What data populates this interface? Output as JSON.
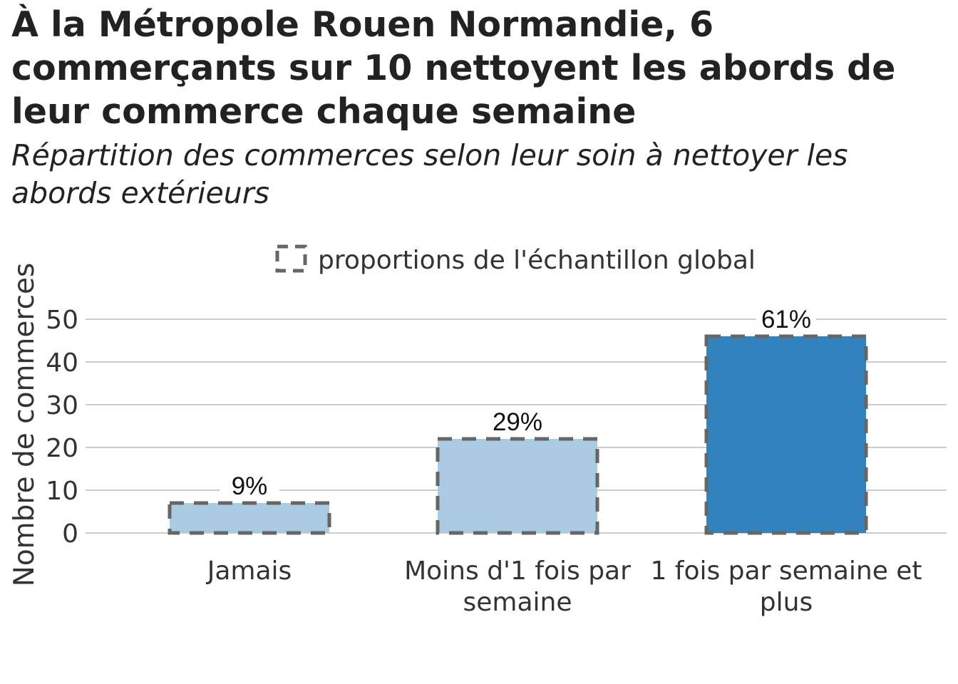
{
  "title": "À la Métropole Rouen Normandie, 6 commerçants sur 10 nettoyent les abords de leur commerce chaque semaine",
  "subtitle": "Répartition des commerces selon leur soin à nettoyer les abords extérieurs",
  "chart_data": {
    "type": "bar",
    "categories": [
      "Jamais",
      "Moins d'1 fois par semaine",
      "1 fois par semaine et plus"
    ],
    "category_lines": [
      [
        "Jamais"
      ],
      [
        "Moins d'1 fois par",
        "semaine"
      ],
      [
        "1 fois par semaine et",
        "plus"
      ]
    ],
    "values": [
      7,
      22,
      46
    ],
    "data_labels": [
      "9%",
      "29%",
      "61%"
    ],
    "reference_values": [
      7,
      22,
      46
    ],
    "bar_colors": [
      "#abcbe3",
      "#abcbe3",
      "#3182bd"
    ],
    "outline_color": "#666666",
    "grid_color": "#cccccc",
    "ylabel": "Nombre de commerces",
    "yticks": [
      0,
      10,
      20,
      30,
      40,
      50
    ],
    "ylim": [
      0,
      50
    ],
    "grid": true,
    "legend": {
      "label": "proportions de l'échantillon global",
      "position": "top",
      "symbol": "dashed-square"
    }
  }
}
